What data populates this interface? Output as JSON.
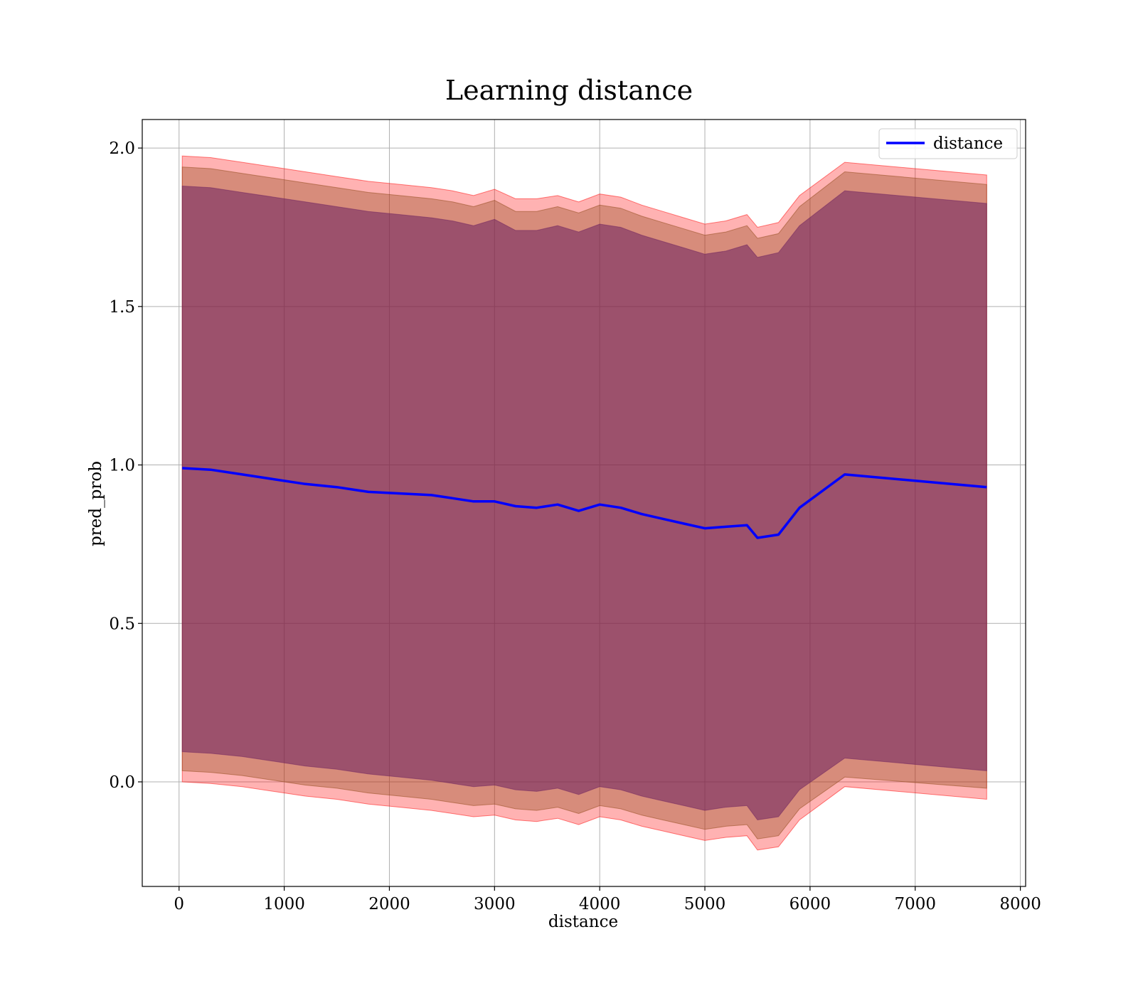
{
  "chart_data": {
    "type": "line",
    "title": "Learning distance",
    "xlabel": "distance",
    "ylabel": "pred_prob",
    "xlim": [
      -350,
      8050
    ],
    "ylim": [
      -0.33,
      2.09
    ],
    "xticks": [
      0,
      1000,
      2000,
      3000,
      4000,
      5000,
      6000,
      7000,
      8000
    ],
    "xtick_labels": [
      "0",
      "1000",
      "2000",
      "3000",
      "4000",
      "5000",
      "6000",
      "7000",
      "8000"
    ],
    "yticks": [
      0.0,
      0.5,
      1.0,
      1.5,
      2.0
    ],
    "ytick_labels": [
      "0.0",
      "0.5",
      "1.0",
      "1.5",
      "2.0"
    ],
    "grid": true,
    "legend": {
      "position": "top-right",
      "entries": [
        "distance"
      ]
    },
    "colors": {
      "line": "#0000ff",
      "band_outer": "#ff0000",
      "band_middle": "#8b4513",
      "band_inner": "#6b2060",
      "grid": "#b0b0b0"
    },
    "series": [
      {
        "name": "distance",
        "x": [
          30,
          300,
          600,
          900,
          1200,
          1500,
          1800,
          2100,
          2400,
          2600,
          2800,
          3000,
          3200,
          3400,
          3600,
          3800,
          4000,
          4200,
          4400,
          4600,
          4800,
          5000,
          5200,
          5400,
          5500,
          5700,
          5900,
          6330,
          7680
        ],
        "y": [
          0.99,
          0.985,
          0.97,
          0.955,
          0.94,
          0.93,
          0.915,
          0.91,
          0.905,
          0.895,
          0.885,
          0.885,
          0.87,
          0.865,
          0.875,
          0.855,
          0.875,
          0.865,
          0.845,
          0.83,
          0.815,
          0.8,
          0.805,
          0.81,
          0.77,
          0.78,
          0.865,
          0.97,
          0.93
        ]
      }
    ],
    "bands": [
      {
        "upper": [
          1.975,
          1.97,
          1.955,
          1.94,
          1.925,
          1.91,
          1.895,
          1.885,
          1.875,
          1.865,
          1.85,
          1.87,
          1.84,
          1.84,
          1.85,
          1.83,
          1.855,
          1.845,
          1.82,
          1.8,
          1.78,
          1.76,
          1.77,
          1.79,
          1.75,
          1.765,
          1.85,
          1.955,
          1.915
        ],
        "lower": [
          0.0,
          -0.005,
          -0.015,
          -0.03,
          -0.045,
          -0.055,
          -0.07,
          -0.08,
          -0.09,
          -0.1,
          -0.11,
          -0.105,
          -0.12,
          -0.125,
          -0.115,
          -0.135,
          -0.11,
          -0.12,
          -0.14,
          -0.155,
          -0.17,
          -0.185,
          -0.175,
          -0.17,
          -0.215,
          -0.205,
          -0.12,
          -0.015,
          -0.055
        ]
      },
      {
        "upper": [
          1.94,
          1.935,
          1.92,
          1.905,
          1.89,
          1.875,
          1.86,
          1.85,
          1.84,
          1.83,
          1.815,
          1.835,
          1.8,
          1.8,
          1.815,
          1.795,
          1.82,
          1.81,
          1.785,
          1.765,
          1.745,
          1.725,
          1.735,
          1.755,
          1.715,
          1.73,
          1.815,
          1.925,
          1.885
        ],
        "lower": [
          0.035,
          0.03,
          0.02,
          0.005,
          -0.01,
          -0.02,
          -0.035,
          -0.045,
          -0.055,
          -0.065,
          -0.075,
          -0.07,
          -0.085,
          -0.09,
          -0.08,
          -0.1,
          -0.075,
          -0.085,
          -0.105,
          -0.12,
          -0.135,
          -0.15,
          -0.14,
          -0.135,
          -0.18,
          -0.17,
          -0.085,
          0.015,
          -0.02
        ]
      },
      {
        "upper": [
          1.88,
          1.875,
          1.86,
          1.845,
          1.83,
          1.815,
          1.8,
          1.79,
          1.78,
          1.77,
          1.755,
          1.775,
          1.74,
          1.74,
          1.755,
          1.735,
          1.76,
          1.75,
          1.725,
          1.705,
          1.685,
          1.665,
          1.675,
          1.695,
          1.655,
          1.67,
          1.755,
          1.865,
          1.825
        ],
        "lower": [
          0.095,
          0.09,
          0.08,
          0.065,
          0.05,
          0.04,
          0.025,
          0.015,
          0.005,
          -0.005,
          -0.015,
          -0.01,
          -0.025,
          -0.03,
          -0.02,
          -0.04,
          -0.015,
          -0.025,
          -0.045,
          -0.06,
          -0.075,
          -0.09,
          -0.08,
          -0.075,
          -0.12,
          -0.11,
          -0.025,
          0.075,
          0.035
        ]
      }
    ]
  }
}
